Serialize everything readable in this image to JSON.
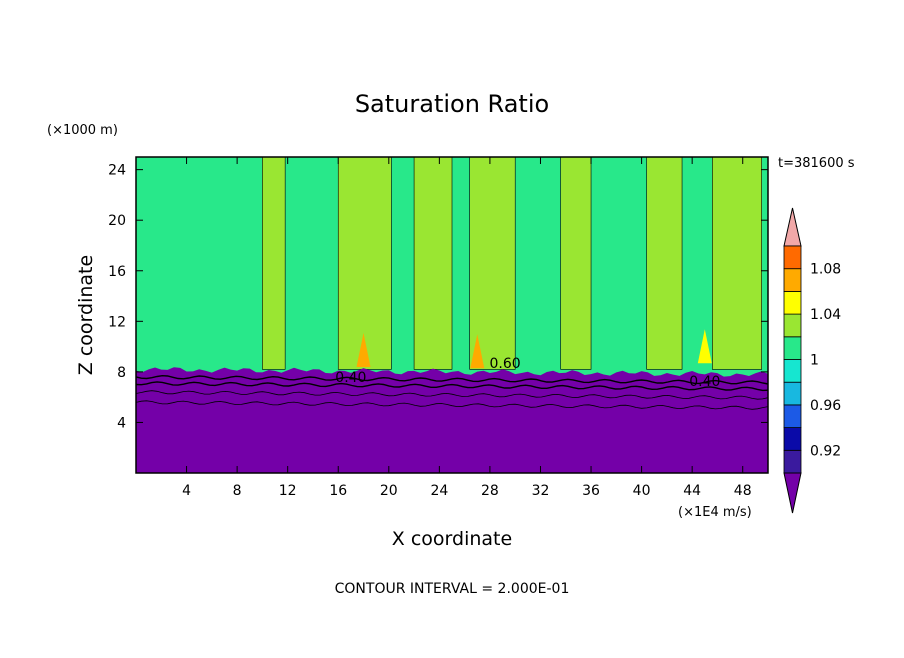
{
  "chart_data": {
    "type": "heatmap",
    "title": "Saturation Ratio",
    "xlabel": "X coordinate",
    "ylabel": "Z coordinate",
    "x_unit": "(×1E4 m/s)",
    "y_unit": "(×1000 m)",
    "time_label": "t=381600 s",
    "footer": "CONTOUR INTERVAL = 2.000E-01",
    "xlim": [
      0,
      50
    ],
    "ylim": [
      0,
      25
    ],
    "x_ticks": [
      "4",
      "8",
      "12",
      "16",
      "20",
      "24",
      "28",
      "32",
      "36",
      "40",
      "44",
      "48"
    ],
    "x_tick_values": [
      4,
      8,
      12,
      16,
      20,
      24,
      28,
      32,
      36,
      40,
      44,
      48
    ],
    "y_ticks": [
      "4",
      "8",
      "12",
      "16",
      "20",
      "24"
    ],
    "y_tick_values": [
      4,
      8,
      12,
      16,
      20,
      24
    ],
    "colorbar": {
      "levels": [
        0.9,
        0.92,
        0.94,
        0.96,
        0.98,
        1.0,
        1.02,
        1.04,
        1.06,
        1.08,
        1.1
      ],
      "labels": [
        {
          "text": "0.92",
          "value": 0.92
        },
        {
          "text": "0.96",
          "value": 0.96
        },
        {
          "text": "1",
          "value": 1.0
        },
        {
          "text": "1.04",
          "value": 1.04
        },
        {
          "text": "1.08",
          "value": 1.08
        }
      ],
      "colors": [
        "#3a1a9e",
        "#0a0aa8",
        "#1c5ae6",
        "#18b8e0",
        "#16e6d0",
        "#28e88a",
        "#9ae632",
        "#ffff00",
        "#ffaa00",
        "#ff6a00",
        "#ff2a2a"
      ],
      "under_color": "#7400a8",
      "over_color": "#f2a8a8"
    },
    "fields": {
      "lower_layer_color": "#7400a8",
      "lower_layer_top": 8.2,
      "base_color": "#28e88a",
      "band_color": "#9ae632"
    },
    "bands": [
      {
        "x0": 10.0,
        "x1": 11.8
      },
      {
        "x0": 16.0,
        "x1": 20.2
      },
      {
        "x0": 22.0,
        "x1": 25.0
      },
      {
        "x0": 26.4,
        "x1": 30.0
      },
      {
        "x0": 33.6,
        "x1": 36.0
      },
      {
        "x0": 40.4,
        "x1": 43.2
      },
      {
        "x0": 45.6,
        "x1": 49.5
      }
    ],
    "hotspots": [
      {
        "x": 27.0,
        "z": 8.6,
        "color": "#ffaa00",
        "value": 1.06
      },
      {
        "x": 45.0,
        "z": 9.0,
        "color": "#ffff00",
        "value": 1.04
      },
      {
        "x": 18.0,
        "z": 8.7,
        "color": "#ffaa00",
        "value": 1.06
      }
    ],
    "contour_labels": [
      {
        "text": "0.40",
        "x": 17.0,
        "z": 7.2
      },
      {
        "text": "0.60",
        "x": 29.2,
        "z": 8.3
      },
      {
        "text": "0.40",
        "x": 45.0,
        "z": 6.9
      }
    ]
  }
}
